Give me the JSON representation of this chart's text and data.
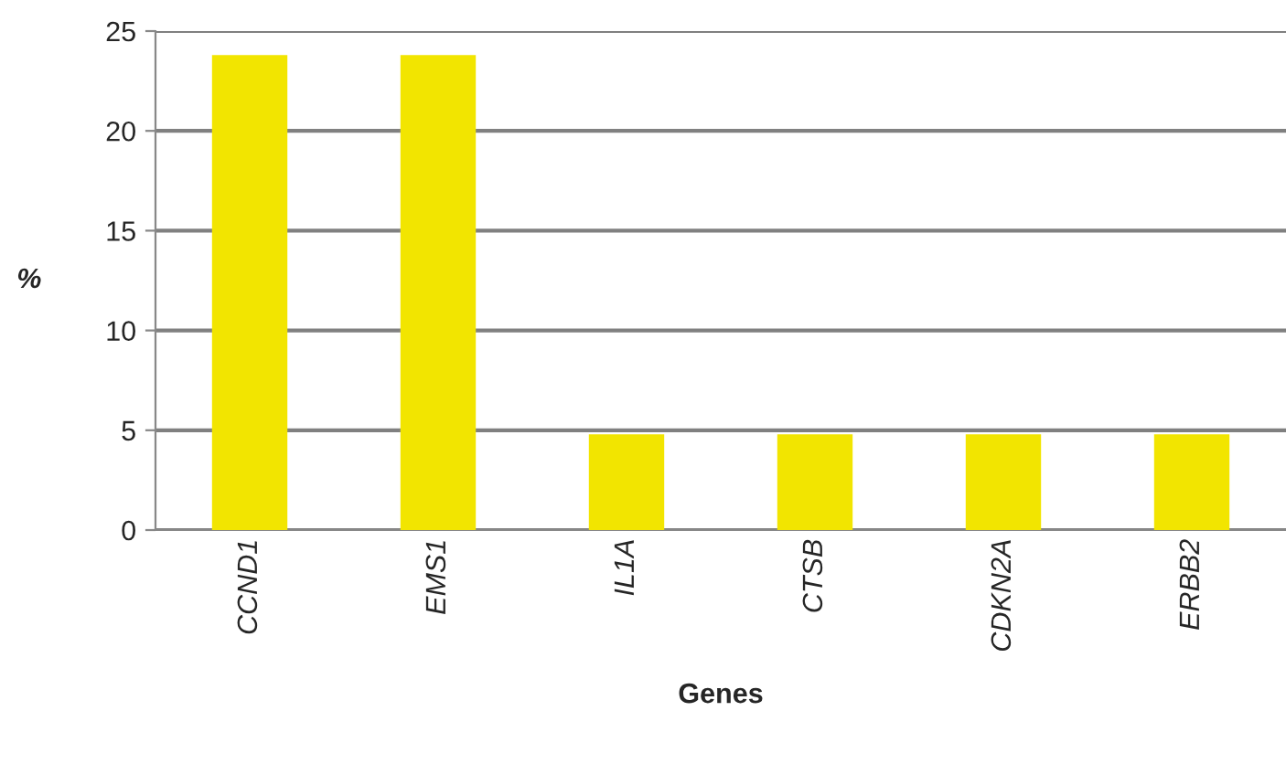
{
  "chart_data": {
    "type": "bar",
    "xlabel": "Genes",
    "ylabel": "%",
    "categories": [
      "CCND1",
      "EMS1",
      "IL1A",
      "CTSB",
      "CDKN2A",
      "ERBB2"
    ],
    "values": [
      23.8,
      23.8,
      4.8,
      4.8,
      4.8,
      4.8
    ],
    "color": "#f2e500",
    "ylim": [
      0,
      25
    ],
    "yticks": [
      0,
      5,
      10,
      15,
      20,
      25
    ],
    "grid": "y",
    "legend": false
  }
}
